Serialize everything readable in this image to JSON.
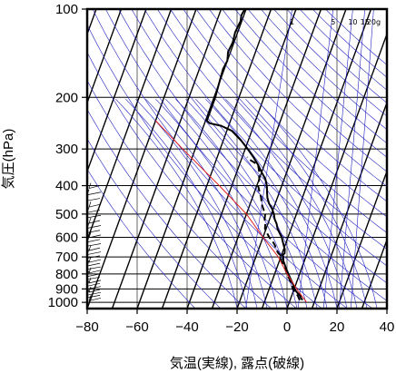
{
  "chart_data": {
    "type": "line",
    "xlabel": "気温(実線), 露点(破線)",
    "ylabel": "気圧(hPa)",
    "xlim": [
      -80,
      40
    ],
    "ylim": [
      1050,
      100
    ],
    "y_scale": "log",
    "x_ticks": [
      "−80",
      "−60",
      "−40",
      "−20",
      "0",
      "20",
      "40"
    ],
    "x_tick_values": [
      -80,
      -60,
      -40,
      -20,
      0,
      20,
      40
    ],
    "y_ticks": [
      "100",
      "200",
      "300",
      "400",
      "500",
      "600",
      "700",
      "800",
      "900",
      "1000"
    ],
    "y_tick_values": [
      100,
      200,
      300,
      400,
      500,
      600,
      700,
      800,
      900,
      1000
    ],
    "mixing_ratio_labels": [
      "1",
      "5",
      "10",
      "15",
      "20g"
    ],
    "mixing_ratio_values": [
      1,
      5,
      10,
      15,
      20
    ],
    "series": [
      {
        "style": "solid",
        "color": "#000000",
        "p": [
          980,
          975,
          965,
          950,
          930,
          900,
          880,
          850,
          820,
          800,
          780,
          760,
          740,
          720,
          700,
          690,
          680,
          660,
          640,
          620,
          600,
          580,
          560,
          540,
          520,
          500,
          480,
          460,
          440,
          420,
          400,
          380,
          360,
          340,
          320,
          300,
          280,
          260,
          250,
          245,
          240,
          230,
          220,
          200,
          180,
          160,
          150,
          140,
          130,
          120,
          110,
          105,
          100
        ],
        "x": [
          5,
          4.5,
          4,
          3.5,
          2,
          0,
          -0.5,
          -2,
          -3.5,
          -4.5,
          -5.5,
          -6.5,
          -7.5,
          -8.5,
          -9,
          -9.5,
          -9,
          -9.5,
          -10.5,
          -11.5,
          -12.5,
          -14,
          -15.5,
          -16.5,
          -18,
          -19,
          -20.5,
          -22.5,
          -24,
          -25,
          -26,
          -27.5,
          -30,
          -32.5,
          -35.5,
          -39,
          -43,
          -48,
          -53,
          -58,
          -59.5,
          -59.5,
          -59.5,
          -59.5,
          -60,
          -60.5,
          -60,
          -61,
          -60.5,
          -61,
          -60.5,
          -61,
          -60.5
        ]
      },
      {
        "style": "dashed",
        "color": "#000000",
        "p": [
          980,
          975,
          950,
          900,
          850,
          800,
          760,
          740,
          720,
          700,
          690,
          680,
          660,
          640,
          620,
          600,
          580,
          560,
          540,
          520,
          500,
          480,
          460,
          440,
          420,
          400,
          380,
          360,
          340,
          325,
          320
        ],
        "x": [
          4,
          3.5,
          2.5,
          -0.5,
          -2.5,
          -5,
          -7,
          -8,
          -9.5,
          -9.5,
          -10.5,
          -11.5,
          -13,
          -14,
          -15.5,
          -17.5,
          -19,
          -20.5,
          -21,
          -22,
          -22.5,
          -24,
          -25.5,
          -26.5,
          -28,
          -29.5,
          -30,
          -31,
          -32.5,
          -37,
          -38
        ]
      },
      {
        "style": "solid",
        "color": "#e02020",
        "p": [
          1000,
          900,
          800,
          700,
          600,
          500,
          400,
          300,
          240
        ],
        "x": [
          7,
          1,
          -5,
          -11,
          -20,
          -30,
          -45,
          -65,
          -80
        ]
      }
    ]
  }
}
